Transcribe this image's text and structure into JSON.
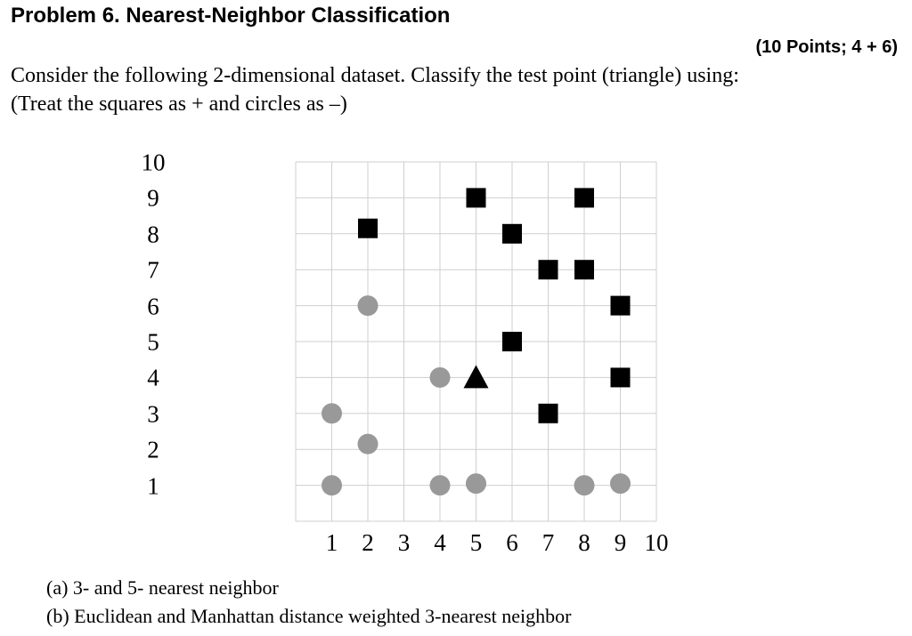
{
  "header": {
    "title": "Problem 6. Nearest-Neighbor Classification",
    "points": "(10 Points; 4 + 6)"
  },
  "body": {
    "line1": "Consider the following 2-dimensional dataset. Classify the test point (triangle) using:",
    "line2": "(Treat the squares as + and circles as –)"
  },
  "questions": {
    "a": "(a)  3- and 5- nearest neighbor",
    "b": "(b)  Euclidean and Manhattan distance weighted 3-nearest neighbor"
  },
  "chart_data": {
    "type": "scatter",
    "title": "",
    "xlabel": "",
    "ylabel": "",
    "xlim": [
      0,
      10
    ],
    "ylim": [
      0,
      10
    ],
    "grid": true,
    "x_ticks": [
      "1",
      "2",
      "3",
      "4",
      "5",
      "6",
      "7",
      "8",
      "9",
      "10"
    ],
    "y_ticks": [
      "10",
      "9",
      "8",
      "7",
      "6",
      "5",
      "4",
      "3",
      "2",
      "1"
    ],
    "series": [
      {
        "name": "squares (+)",
        "marker": "square",
        "color": "#000000",
        "points": [
          [
            2,
            8.15
          ],
          [
            5,
            9
          ],
          [
            8,
            9
          ],
          [
            6,
            8
          ],
          [
            7,
            7
          ],
          [
            8,
            7
          ],
          [
            9,
            6
          ],
          [
            6,
            5
          ],
          [
            9,
            4
          ],
          [
            7,
            3
          ]
        ]
      },
      {
        "name": "circles (–)",
        "marker": "circle",
        "color": "#999999",
        "points": [
          [
            2,
            6
          ],
          [
            4,
            4
          ],
          [
            1,
            3
          ],
          [
            2,
            2.15
          ],
          [
            1,
            1
          ],
          [
            4,
            1
          ],
          [
            5,
            1.05
          ],
          [
            8,
            1
          ],
          [
            9,
            1.05
          ]
        ]
      },
      {
        "name": "test point",
        "marker": "triangle",
        "color": "#000000",
        "points": [
          [
            5,
            4
          ]
        ]
      }
    ]
  }
}
